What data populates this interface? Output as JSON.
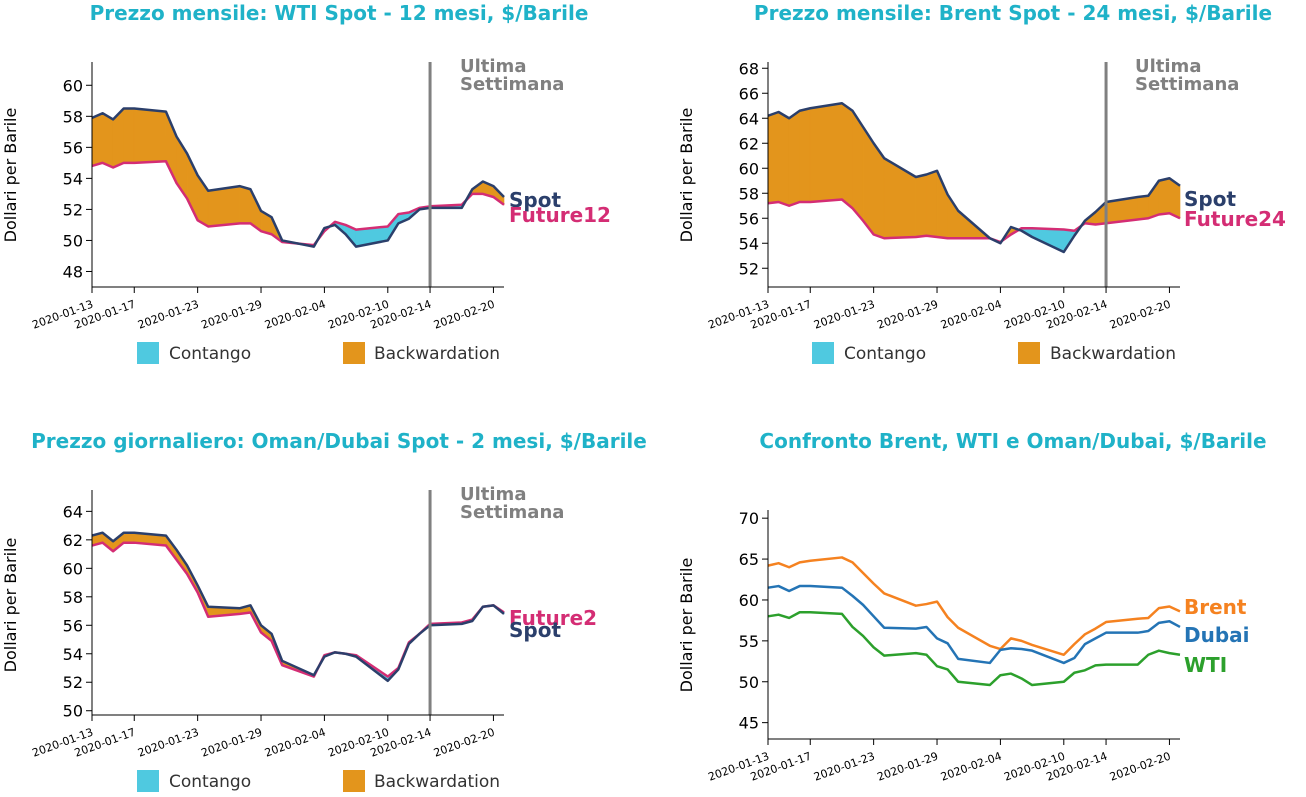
{
  "colors": {
    "title": "#1fb2c8",
    "spot": "#2b3f6b",
    "future": "#d42d74",
    "contango": "#4fc9e0",
    "backwardation": "#e3951c",
    "vline": "#808080",
    "brent": "#f58220",
    "dubai": "#2474b5",
    "wti": "#2ca02c"
  },
  "legend": {
    "contango": "Contango",
    "backwardation": "Backwardation"
  },
  "chart_data": [
    {
      "type": "area",
      "title": "Prezzo mensile: WTI Spot - 12 mesi, $/Barile",
      "ylabel": "Dollari per Barile",
      "ylim": [
        47,
        61.5
      ],
      "yticks": [
        48,
        50,
        52,
        54,
        56,
        58,
        60
      ],
      "xlim": [
        "2020-01-13",
        "2020-02-21"
      ],
      "xticks": [
        "2020-01-13",
        "2020-01-17",
        "2020-01-23",
        "2020-01-29",
        "2020-02-04",
        "2020-02-10",
        "2020-02-14",
        "2020-02-20"
      ],
      "vline": {
        "x": "2020-02-14",
        "label": [
          "Ultima",
          "Settimana"
        ]
      },
      "legend": [
        "Contango",
        "Backwardation"
      ],
      "x": [
        "2020-01-13",
        "2020-01-14",
        "2020-01-15",
        "2020-01-16",
        "2020-01-17",
        "2020-01-20",
        "2020-01-21",
        "2020-01-22",
        "2020-01-23",
        "2020-01-24",
        "2020-01-27",
        "2020-01-28",
        "2020-01-29",
        "2020-01-30",
        "2020-01-31",
        "2020-02-03",
        "2020-02-04",
        "2020-02-05",
        "2020-02-06",
        "2020-02-07",
        "2020-02-10",
        "2020-02-11",
        "2020-02-12",
        "2020-02-13",
        "2020-02-14",
        "2020-02-17",
        "2020-02-18",
        "2020-02-19",
        "2020-02-20",
        "2020-02-21"
      ],
      "series": [
        {
          "name": "Spot",
          "values": [
            57.9,
            58.2,
            57.8,
            58.5,
            58.5,
            58.3,
            56.7,
            55.6,
            54.2,
            53.2,
            53.5,
            53.3,
            51.9,
            51.5,
            50.0,
            49.6,
            50.8,
            51.0,
            50.4,
            49.6,
            50.0,
            51.1,
            51.4,
            52.0,
            52.1,
            52.1,
            53.3,
            53.8,
            53.5,
            52.8
          ]
        },
        {
          "name": "Future12",
          "values": [
            54.8,
            55.0,
            54.7,
            55.0,
            55.0,
            55.1,
            53.7,
            52.7,
            51.3,
            50.9,
            51.1,
            51.1,
            50.6,
            50.4,
            49.9,
            49.7,
            50.6,
            51.2,
            51.0,
            50.7,
            50.9,
            51.7,
            51.8,
            52.1,
            52.2,
            52.3,
            53.0,
            53.0,
            52.8,
            52.3
          ]
        }
      ],
      "end_labels": [
        "Spot",
        "Future12"
      ]
    },
    {
      "type": "area",
      "title": "Prezzo mensile: Brent Spot - 24 mesi, $/Barile",
      "ylabel": "Dollari per Barile",
      "ylim": [
        50.5,
        68.5
      ],
      "yticks": [
        52,
        54,
        56,
        58,
        60,
        62,
        64,
        66,
        68
      ],
      "xlim": [
        "2020-01-13",
        "2020-02-21"
      ],
      "xticks": [
        "2020-01-13",
        "2020-01-17",
        "2020-01-23",
        "2020-01-29",
        "2020-02-04",
        "2020-02-10",
        "2020-02-14",
        "2020-02-20"
      ],
      "vline": {
        "x": "2020-02-14",
        "label": [
          "Ultima",
          "Settimana"
        ]
      },
      "legend": [
        "Contango",
        "Backwardation"
      ],
      "x": [
        "2020-01-13",
        "2020-01-14",
        "2020-01-15",
        "2020-01-16",
        "2020-01-17",
        "2020-01-20",
        "2020-01-21",
        "2020-01-22",
        "2020-01-23",
        "2020-01-24",
        "2020-01-27",
        "2020-01-28",
        "2020-01-29",
        "2020-01-30",
        "2020-01-31",
        "2020-02-03",
        "2020-02-04",
        "2020-02-05",
        "2020-02-06",
        "2020-02-07",
        "2020-02-10",
        "2020-02-11",
        "2020-02-12",
        "2020-02-13",
        "2020-02-14",
        "2020-02-17",
        "2020-02-18",
        "2020-02-19",
        "2020-02-20",
        "2020-02-21"
      ],
      "series": [
        {
          "name": "Spot",
          "values": [
            64.2,
            64.5,
            64.0,
            64.6,
            64.8,
            65.2,
            64.6,
            63.3,
            62.0,
            60.8,
            59.3,
            59.5,
            59.8,
            57.9,
            56.6,
            54.4,
            54.0,
            55.3,
            55.0,
            54.5,
            53.3,
            54.6,
            55.8,
            56.5,
            57.3,
            57.7,
            57.8,
            59.0,
            59.2,
            58.6
          ]
        },
        {
          "name": "Future24",
          "values": [
            57.2,
            57.3,
            57.0,
            57.3,
            57.3,
            57.5,
            56.8,
            55.8,
            54.7,
            54.4,
            54.5,
            54.6,
            54.5,
            54.4,
            54.4,
            54.4,
            54.1,
            54.7,
            55.2,
            55.2,
            55.1,
            55.0,
            55.6,
            55.5,
            55.6,
            55.9,
            56.0,
            56.3,
            56.4,
            56.0
          ]
        }
      ],
      "end_labels": [
        "Spot",
        "Future24"
      ]
    },
    {
      "type": "area",
      "title": "Prezzo giornaliero: Oman/Dubai Spot - 2 mesi, $/Barile",
      "ylabel": "Dollari per Barile",
      "ylim": [
        49.7,
        65.5
      ],
      "yticks": [
        50,
        52,
        54,
        56,
        58,
        60,
        62,
        64
      ],
      "xlim": [
        "2020-01-13",
        "2020-02-21"
      ],
      "xticks": [
        "2020-01-13",
        "2020-01-17",
        "2020-01-23",
        "2020-01-29",
        "2020-02-04",
        "2020-02-10",
        "2020-02-14",
        "2020-02-20"
      ],
      "vline": {
        "x": "2020-02-14",
        "label": [
          "Ultima",
          "Settimana"
        ]
      },
      "legend": [
        "Contango",
        "Backwardation"
      ],
      "x": [
        "2020-01-13",
        "2020-01-14",
        "2020-01-15",
        "2020-01-16",
        "2020-01-17",
        "2020-01-20",
        "2020-01-21",
        "2020-01-22",
        "2020-01-23",
        "2020-01-24",
        "2020-01-27",
        "2020-01-28",
        "2020-01-29",
        "2020-01-30",
        "2020-01-31",
        "2020-02-03",
        "2020-02-04",
        "2020-02-05",
        "2020-02-06",
        "2020-02-07",
        "2020-02-10",
        "2020-02-11",
        "2020-02-12",
        "2020-02-13",
        "2020-02-14",
        "2020-02-17",
        "2020-02-18",
        "2020-02-19",
        "2020-02-20",
        "2020-02-21"
      ],
      "series": [
        {
          "name": "Spot",
          "values": [
            62.3,
            62.5,
            61.9,
            62.5,
            62.5,
            62.3,
            61.3,
            60.2,
            58.8,
            57.3,
            57.2,
            57.4,
            56.0,
            55.4,
            53.5,
            52.5,
            53.8,
            54.1,
            54.0,
            53.8,
            52.1,
            52.9,
            54.7,
            55.4,
            56.0,
            56.1,
            56.3,
            57.3,
            57.4,
            56.8
          ]
        },
        {
          "name": "Future2",
          "values": [
            61.6,
            61.8,
            61.2,
            61.8,
            61.8,
            61.6,
            60.6,
            59.6,
            58.3,
            56.6,
            56.8,
            56.9,
            55.5,
            54.9,
            53.2,
            52.4,
            53.9,
            54.1,
            54.0,
            53.9,
            52.4,
            53.0,
            54.8,
            55.4,
            56.1,
            56.2,
            56.4,
            57.3,
            57.4,
            56.9
          ]
        }
      ],
      "end_labels": [
        "Future2",
        "Spot"
      ]
    },
    {
      "type": "line",
      "title": "Confronto Brent, WTI e Oman/Dubai, $/Barile",
      "ylabel": "Dollari per Barile",
      "ylim": [
        43,
        71
      ],
      "yticks": [
        45,
        50,
        55,
        60,
        65,
        70
      ],
      "xlim": [
        "2020-01-13",
        "2020-02-21"
      ],
      "xticks": [
        "2020-01-13",
        "2020-01-17",
        "2020-01-23",
        "2020-01-29",
        "2020-02-04",
        "2020-02-10",
        "2020-02-14",
        "2020-02-20"
      ],
      "x": [
        "2020-01-13",
        "2020-01-14",
        "2020-01-15",
        "2020-01-16",
        "2020-01-17",
        "2020-01-20",
        "2020-01-21",
        "2020-01-22",
        "2020-01-23",
        "2020-01-24",
        "2020-01-27",
        "2020-01-28",
        "2020-01-29",
        "2020-01-30",
        "2020-01-31",
        "2020-02-03",
        "2020-02-04",
        "2020-02-05",
        "2020-02-06",
        "2020-02-07",
        "2020-02-10",
        "2020-02-11",
        "2020-02-12",
        "2020-02-13",
        "2020-02-14",
        "2020-02-17",
        "2020-02-18",
        "2020-02-19",
        "2020-02-20",
        "2020-02-21"
      ],
      "series": [
        {
          "name": "Brent",
          "values": [
            64.2,
            64.5,
            64.0,
            64.6,
            64.8,
            65.2,
            64.6,
            63.3,
            62.0,
            60.8,
            59.3,
            59.5,
            59.8,
            57.9,
            56.6,
            54.4,
            54.0,
            55.3,
            55.0,
            54.5,
            53.3,
            54.6,
            55.8,
            56.5,
            57.3,
            57.7,
            57.8,
            59.0,
            59.2,
            58.6
          ]
        },
        {
          "name": "Dubai",
          "values": [
            61.5,
            61.7,
            61.1,
            61.7,
            61.7,
            61.5,
            60.5,
            59.4,
            58.0,
            56.6,
            56.5,
            56.7,
            55.3,
            54.7,
            52.8,
            52.3,
            53.9,
            54.1,
            54.0,
            53.8,
            52.3,
            52.9,
            54.6,
            55.3,
            56.0,
            56.0,
            56.2,
            57.2,
            57.4,
            56.7
          ]
        },
        {
          "name": "WTI",
          "values": [
            58.0,
            58.2,
            57.8,
            58.5,
            58.5,
            58.3,
            56.7,
            55.6,
            54.2,
            53.2,
            53.5,
            53.3,
            51.9,
            51.5,
            50.0,
            49.6,
            50.8,
            51.0,
            50.4,
            49.6,
            50.0,
            51.1,
            51.4,
            52.0,
            52.1,
            52.1,
            53.3,
            53.8,
            53.5,
            53.3
          ]
        }
      ],
      "end_labels": [
        "Brent",
        "Dubai",
        "WTI"
      ]
    }
  ]
}
